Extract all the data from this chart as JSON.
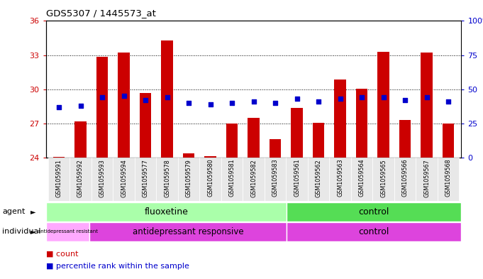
{
  "title": "GDS5307 / 1445573_at",
  "samples": [
    "GSM1059591",
    "GSM1059592",
    "GSM1059593",
    "GSM1059594",
    "GSM1059577",
    "GSM1059578",
    "GSM1059579",
    "GSM1059580",
    "GSM1059581",
    "GSM1059582",
    "GSM1059583",
    "GSM1059561",
    "GSM1059562",
    "GSM1059563",
    "GSM1059564",
    "GSM1059565",
    "GSM1059566",
    "GSM1059567",
    "GSM1059568"
  ],
  "count_values": [
    24.05,
    27.2,
    32.85,
    33.2,
    29.7,
    34.3,
    24.35,
    24.15,
    27.0,
    27.5,
    25.6,
    28.35,
    27.05,
    30.85,
    30.05,
    33.3,
    27.3,
    33.2,
    27.0
  ],
  "percentile_values": [
    37,
    38,
    44,
    45,
    42,
    44,
    40,
    39,
    40,
    41,
    40,
    43,
    41,
    43,
    44,
    44,
    42,
    44,
    41
  ],
  "ymin": 24,
  "ymax": 36,
  "yticks_left": [
    24,
    27,
    30,
    33,
    36
  ],
  "yticks_right": [
    0,
    25,
    50,
    75,
    100
  ],
  "bar_color": "#cc0000",
  "dot_color": "#0000cc",
  "bar_width": 0.55,
  "left_axis_color": "#cc0000",
  "right_axis_color": "#0000cc",
  "fluox_color": "#aaffaa",
  "control_agent_color": "#55dd55",
  "resist_color": "#ffaaff",
  "responsive_color": "#dd44dd",
  "ind_control_color": "#dd44dd",
  "bg_color": "#e8e8e8"
}
